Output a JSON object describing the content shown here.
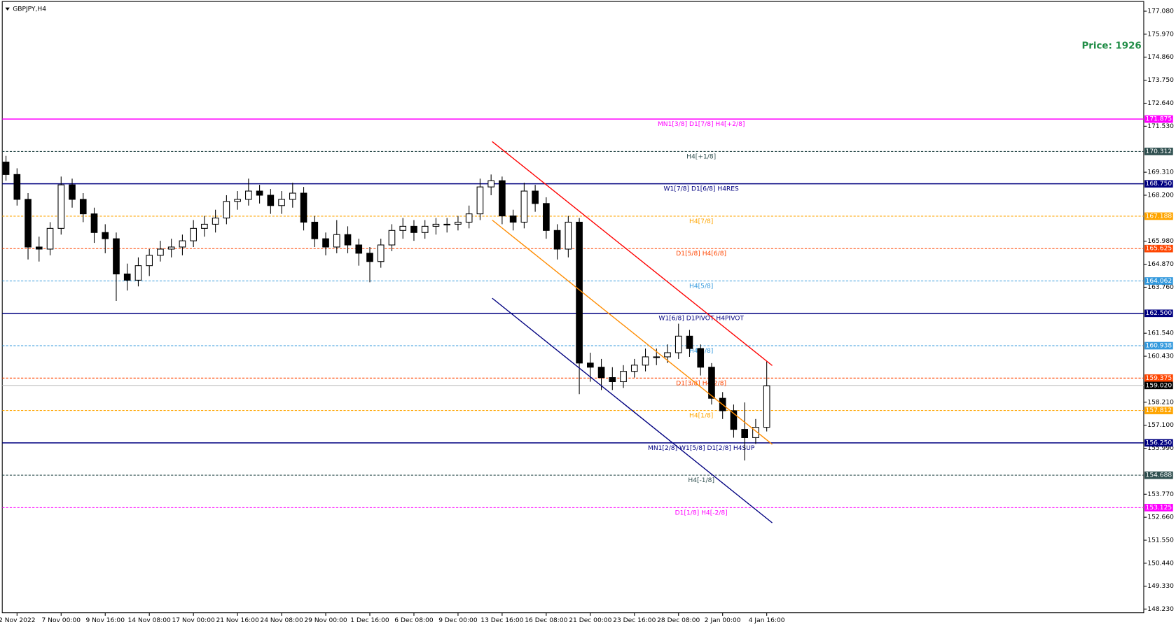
{
  "chart_data": {
    "type": "candlestick",
    "title": "GBPJPY,H4",
    "annotation": "Price: 1926",
    "categories": [
      null,
      "2 Nov 2022",
      null,
      null,
      null,
      "7 Nov 00:00",
      null,
      null,
      null,
      "9 Nov 16:00",
      null,
      null,
      null,
      "14 Nov 08:00",
      null,
      null,
      null,
      "17 Nov 00:00",
      null,
      null,
      null,
      "21 Nov 16:00",
      null,
      null,
      null,
      "24 Nov 08:00",
      null,
      null,
      null,
      "29 Nov 00:00",
      null,
      null,
      null,
      "1 Dec 16:00",
      null,
      null,
      null,
      "6 Dec 08:00",
      null,
      null,
      null,
      "9 Dec 00:00",
      null,
      null,
      null,
      "13 Dec 16:00",
      null,
      null,
      null,
      "16 Dec 08:00",
      null,
      null,
      null,
      "21 Dec 00:00",
      null,
      null,
      null,
      "23 Dec 16:00",
      null,
      null,
      null,
      "28 Dec 08:00",
      null,
      null,
      null,
      "2 Jan 00:00",
      null,
      null,
      null,
      "4 Jan 16:00"
    ],
    "open": [
      169.8,
      169.2,
      168.0,
      165.7,
      165.6,
      166.6,
      168.7,
      168.0,
      167.3,
      166.4,
      166.1,
      164.4,
      164.1,
      164.8,
      165.3,
      165.6,
      165.7,
      166.0,
      166.6,
      166.8,
      167.1,
      167.9,
      168.0,
      168.4,
      168.2,
      167.7,
      168.0,
      168.3,
      166.9,
      166.1,
      165.7,
      166.3,
      165.8,
      165.4,
      165.0,
      165.8,
      166.5,
      166.7,
      166.4,
      166.7,
      166.8,
      166.8,
      166.9,
      167.3,
      168.6,
      168.9,
      167.2,
      166.9,
      168.4,
      167.8,
      166.5,
      165.6,
      166.9,
      160.1,
      159.9,
      159.4,
      159.2,
      159.7,
      160.0,
      160.4,
      160.4,
      160.6,
      161.4,
      160.8,
      159.9,
      158.4,
      157.8,
      156.9,
      156.5,
      157.0
    ],
    "high": [
      170.1,
      169.5,
      168.3,
      166.2,
      166.9,
      169.1,
      169.0,
      168.3,
      167.6,
      166.8,
      166.4,
      164.9,
      165.2,
      165.6,
      166.0,
      166.1,
      166.3,
      167.0,
      167.2,
      167.5,
      168.2,
      168.4,
      169.0,
      168.7,
      168.5,
      168.4,
      168.8,
      168.6,
      167.2,
      166.4,
      167.0,
      166.7,
      166.1,
      165.7,
      166.1,
      166.8,
      167.1,
      167.0,
      167.0,
      167.1,
      167.1,
      167.2,
      167.7,
      169.0,
      169.2,
      169.1,
      167.5,
      168.8,
      168.7,
      168.1,
      166.8,
      167.2,
      167.1,
      160.6,
      160.3,
      159.9,
      160.0,
      160.3,
      160.8,
      160.8,
      161.0,
      162.0,
      161.7,
      161.0,
      160.1,
      158.7,
      158.1,
      158.2,
      157.4,
      160.2
    ],
    "low": [
      168.9,
      167.7,
      165.1,
      165.0,
      165.3,
      166.3,
      167.6,
      166.9,
      165.9,
      165.4,
      163.1,
      163.6,
      163.8,
      164.3,
      165.0,
      165.2,
      165.3,
      165.7,
      166.2,
      166.4,
      166.8,
      167.5,
      167.7,
      167.8,
      167.3,
      167.3,
      167.6,
      166.5,
      165.7,
      165.3,
      165.4,
      165.4,
      164.8,
      164.0,
      164.7,
      165.5,
      166.1,
      166.0,
      166.1,
      166.3,
      166.4,
      166.5,
      166.6,
      167.0,
      168.2,
      166.8,
      166.5,
      166.6,
      167.4,
      166.1,
      165.1,
      165.2,
      158.6,
      159.2,
      158.8,
      158.8,
      158.9,
      159.4,
      159.7,
      160.0,
      160.1,
      160.3,
      160.4,
      159.5,
      158.1,
      157.4,
      156.5,
      155.4,
      156.2,
      156.8
    ],
    "close": [
      169.2,
      168.0,
      165.7,
      165.6,
      166.6,
      168.7,
      168.0,
      167.3,
      166.4,
      166.1,
      164.4,
      164.1,
      164.8,
      165.3,
      165.6,
      165.7,
      166.0,
      166.6,
      166.8,
      167.1,
      167.9,
      168.0,
      168.4,
      168.2,
      167.7,
      168.0,
      168.3,
      166.9,
      166.1,
      165.7,
      166.3,
      165.8,
      165.4,
      165.0,
      165.8,
      166.5,
      166.7,
      166.4,
      166.7,
      166.8,
      166.8,
      166.9,
      167.3,
      168.6,
      168.9,
      167.2,
      166.9,
      168.4,
      167.8,
      166.5,
      165.6,
      166.9,
      160.1,
      159.9,
      159.4,
      159.2,
      159.7,
      160.0,
      160.4,
      160.4,
      160.6,
      161.4,
      160.8,
      159.9,
      158.4,
      157.8,
      156.9,
      156.5,
      157.0,
      159.0
    ],
    "ylim": [
      148.05,
      177.44
    ],
    "yticks": [
      {
        "value": 177.08,
        "label": "177.080"
      },
      {
        "value": 175.97,
        "label": "175.970"
      },
      {
        "value": 174.86,
        "label": "174.860"
      },
      {
        "value": 173.75,
        "label": "173.750"
      },
      {
        "value": 172.64,
        "label": "172.640"
      },
      {
        "value": 171.53,
        "label": "171.530"
      },
      {
        "value": 169.31,
        "label": "169.310"
      },
      {
        "value": 168.2,
        "label": "168.200"
      },
      {
        "value": 165.98,
        "label": "165.980"
      },
      {
        "value": 164.87,
        "label": "164.870"
      },
      {
        "value": 163.76,
        "label": "163.760"
      },
      {
        "value": 161.54,
        "label": "161.540"
      },
      {
        "value": 160.43,
        "label": "160.430"
      },
      {
        "value": 158.21,
        "label": "158.210"
      },
      {
        "value": 157.1,
        "label": "157.100"
      },
      {
        "value": 155.99,
        "label": "155.990"
      },
      {
        "value": 153.77,
        "label": "153.770"
      },
      {
        "value": 152.66,
        "label": "152.660"
      },
      {
        "value": 151.55,
        "label": "151.550"
      },
      {
        "value": 150.44,
        "label": "150.440"
      },
      {
        "value": 149.33,
        "label": "149.330"
      },
      {
        "value": 148.23,
        "label": "148.230"
      }
    ],
    "levels": [
      {
        "name": "MN1[3/8] D1[7/8] H4[+2/8]",
        "price": {
          "value": 171.875,
          "label": "171.875"
        },
        "color": "#ff00ff",
        "dashed": false
      },
      {
        "name": "H4[+1/8]",
        "price": {
          "value": 170.312,
          "label": "170.312"
        },
        "color": "#2f4f4f",
        "dashed": true
      },
      {
        "name": "W1[7/8] D1[6/8] H4RES",
        "price": {
          "value": 168.75,
          "label": "168.750"
        },
        "color": "#000080",
        "dashed": false
      },
      {
        "name": "H4[7/8]",
        "price": {
          "value": 167.188,
          "label": "167.188"
        },
        "color": "#ffa500",
        "dashed": true
      },
      {
        "name": "D1[5/8] H4[6/8]",
        "price": {
          "value": 165.625,
          "label": "165.625"
        },
        "color": "#ff4500",
        "dashed": true
      },
      {
        "name": "H4[5/8]",
        "price": {
          "value": 164.062,
          "label": "164.062"
        },
        "color": "#3399dd",
        "dashed": true
      },
      {
        "name": "W1[6/8] D1PIVOT H4PIVOT",
        "price": {
          "value": 162.5,
          "label": "162.500"
        },
        "color": "#000080",
        "dashed": false
      },
      {
        "name": "H4[3/8]",
        "price": {
          "value": 160.938,
          "label": "160.938"
        },
        "color": "#3399dd",
        "dashed": true
      },
      {
        "name": "D1[3/8] H4[2/8]",
        "price": {
          "value": 159.375,
          "label": "159.375"
        },
        "color": "#ff4500",
        "dashed": true
      },
      {
        "name": "H4[1/8]",
        "price": {
          "value": 157.812,
          "label": "157.812"
        },
        "color": "#ffa500",
        "dashed": true
      },
      {
        "name": "MN1[2/8] W1[5/8] D1[2/8] H4SUP",
        "price": {
          "value": 156.25,
          "label": "156.250"
        },
        "color": "#000080",
        "dashed": false
      },
      {
        "name": "H4[-1/8]",
        "price": {
          "value": 154.688,
          "label": "154.688"
        },
        "color": "#2f4f4f",
        "dashed": true
      },
      {
        "name": "D1[1/8] H4[-2/8]",
        "price": {
          "value": 153.125,
          "label": "153.125"
        },
        "color": "#ff00ff",
        "dashed": true
      }
    ],
    "current_price": {
      "value": 159.02,
      "label": "159.020"
    },
    "trend_lines": [
      {
        "color": "#ff0000",
        "x": [
          44.1,
          69.5
        ],
        "values": [
          170.79,
          159.98
        ]
      },
      {
        "color": "#ff8c00",
        "x": [
          44.1,
          69.5
        ],
        "values": [
          167.0,
          156.18
        ]
      },
      {
        "color": "#000080",
        "x": [
          44.1,
          69.5
        ],
        "values": [
          163.23,
          152.39
        ]
      }
    ]
  }
}
